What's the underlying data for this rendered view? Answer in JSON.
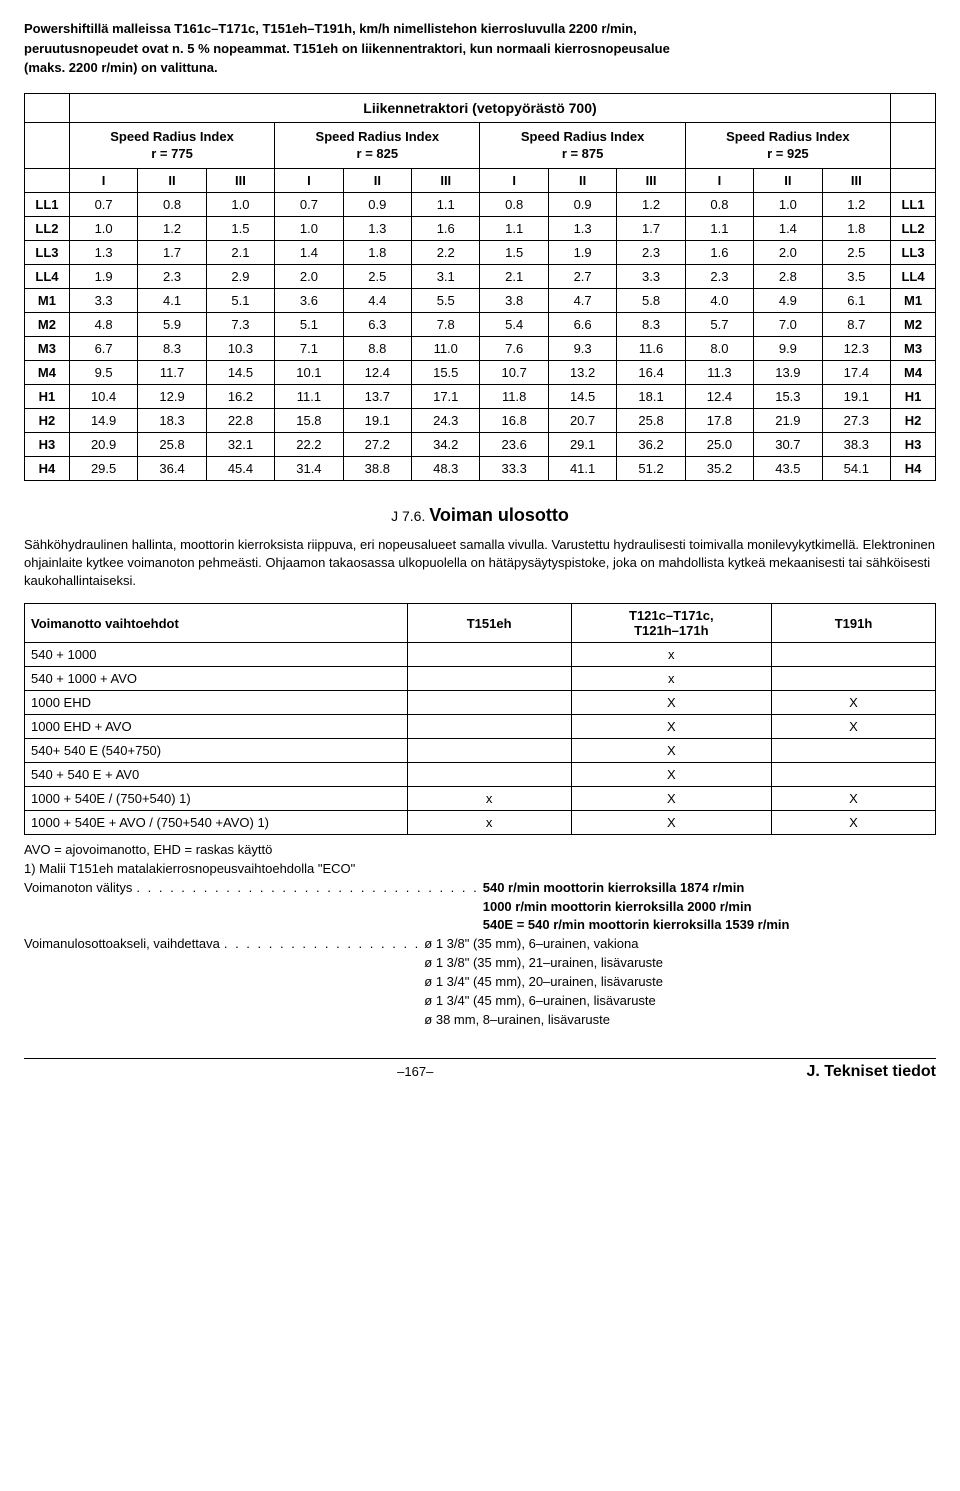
{
  "intro": {
    "line1": "Powershiftillä malleissa T161c–T171c, T151eh–T191h, km/h nimellistehon kierrosluvulla 2200 r/min,",
    "line2": "peruutusnopeudet ovat n. 5 % nopeammat. T151eh on liikennentraktori, kun normaali kierrosnopeusalue",
    "line3": "(maks. 2200 r/min) on valittuna."
  },
  "speed_table": {
    "title": "Liikennetraktori (vetopyörästö 700)",
    "sri_label": "Speed Radius Index",
    "sri_values": [
      "r = 775",
      "r = 825",
      "r = 875",
      "r = 925"
    ],
    "sub_cols": [
      "I",
      "II",
      "III"
    ],
    "rows": [
      {
        "label": "LL1",
        "cells": [
          "0.7",
          "0.8",
          "1.0",
          "0.7",
          "0.9",
          "1.1",
          "0.8",
          "0.9",
          "1.2",
          "0.8",
          "1.0",
          "1.2"
        ],
        "end": "LL1"
      },
      {
        "label": "LL2",
        "cells": [
          "1.0",
          "1.2",
          "1.5",
          "1.0",
          "1.3",
          "1.6",
          "1.1",
          "1.3",
          "1.7",
          "1.1",
          "1.4",
          "1.8"
        ],
        "end": "LL2"
      },
      {
        "label": "LL3",
        "cells": [
          "1.3",
          "1.7",
          "2.1",
          "1.4",
          "1.8",
          "2.2",
          "1.5",
          "1.9",
          "2.3",
          "1.6",
          "2.0",
          "2.5"
        ],
        "end": "LL3"
      },
      {
        "label": "LL4",
        "cells": [
          "1.9",
          "2.3",
          "2.9",
          "2.0",
          "2.5",
          "3.1",
          "2.1",
          "2.7",
          "3.3",
          "2.3",
          "2.8",
          "3.5"
        ],
        "end": "LL4"
      },
      {
        "label": "M1",
        "cells": [
          "3.3",
          "4.1",
          "5.1",
          "3.6",
          "4.4",
          "5.5",
          "3.8",
          "4.7",
          "5.8",
          "4.0",
          "4.9",
          "6.1"
        ],
        "end": "M1"
      },
      {
        "label": "M2",
        "cells": [
          "4.8",
          "5.9",
          "7.3",
          "5.1",
          "6.3",
          "7.8",
          "5.4",
          "6.6",
          "8.3",
          "5.7",
          "7.0",
          "8.7"
        ],
        "end": "M2"
      },
      {
        "label": "M3",
        "cells": [
          "6.7",
          "8.3",
          "10.3",
          "7.1",
          "8.8",
          "11.0",
          "7.6",
          "9.3",
          "11.6",
          "8.0",
          "9.9",
          "12.3"
        ],
        "end": "M3"
      },
      {
        "label": "M4",
        "cells": [
          "9.5",
          "11.7",
          "14.5",
          "10.1",
          "12.4",
          "15.5",
          "10.7",
          "13.2",
          "16.4",
          "11.3",
          "13.9",
          "17.4"
        ],
        "end": "M4"
      },
      {
        "label": "H1",
        "cells": [
          "10.4",
          "12.9",
          "16.2",
          "11.1",
          "13.7",
          "17.1",
          "11.8",
          "14.5",
          "18.1",
          "12.4",
          "15.3",
          "19.1"
        ],
        "end": "H1"
      },
      {
        "label": "H2",
        "cells": [
          "14.9",
          "18.3",
          "22.8",
          "15.8",
          "19.1",
          "24.3",
          "16.8",
          "20.7",
          "25.8",
          "17.8",
          "21.9",
          "27.3"
        ],
        "end": "H2"
      },
      {
        "label": "H3",
        "cells": [
          "20.9",
          "25.8",
          "32.1",
          "22.2",
          "27.2",
          "34.2",
          "23.6",
          "29.1",
          "36.2",
          "25.0",
          "30.7",
          "38.3"
        ],
        "end": "H3"
      },
      {
        "label": "H4",
        "cells": [
          "29.5",
          "36.4",
          "45.4",
          "31.4",
          "38.8",
          "48.3",
          "33.3",
          "41.1",
          "51.2",
          "35.2",
          "43.5",
          "54.1"
        ],
        "end": "H4"
      }
    ]
  },
  "pto": {
    "heading_small": "J 7.6.",
    "heading_big": "Voiman ulosotto",
    "paragraph": "Sähköhydraulinen hallinta, moottorin kierroksista riippuva, eri nopeusalueet samalla vivulla. Varustettu hydraulisesti toimivalla monilevykytkimellä. Elektroninen ohjainlaite kytkee voimanoton pehmeästi. Ohjaamon takaosassa ulkopuolella on hätäpysäytyspistoke, joka on mahdollista kytkeä mekaanisesti tai sähköisesti kaukohallintaiseksi.",
    "header": {
      "col1": "Voimanotto vaihtoehdot",
      "col2": "T151eh",
      "col3a": "T121c–T171c,",
      "col3b": "T121h–171h",
      "col4": "T191h"
    },
    "rows": [
      {
        "label": "540 + 1000",
        "c2": "",
        "c3": "x",
        "c4": ""
      },
      {
        "label": "540 + 1000 + AVO",
        "c2": "",
        "c3": "x",
        "c4": ""
      },
      {
        "label": "1000 EHD",
        "c2": "",
        "c3": "X",
        "c4": "X"
      },
      {
        "label": "1000 EHD + AVO",
        "c2": "",
        "c3": "X",
        "c4": "X"
      },
      {
        "label": "540+ 540 E (540+750)",
        "c2": "",
        "c3": "X",
        "c4": ""
      },
      {
        "label": "540 + 540 E + AV0",
        "c2": "",
        "c3": "X",
        "c4": ""
      },
      {
        "label": "1000 + 540E / (750+540) 1)",
        "c2": "x",
        "c3": "X",
        "c4": "X"
      },
      {
        "label": "1000 + 540E + AVO / (750+540 +AVO) 1)",
        "c2": "x",
        "c3": "X",
        "c4": "X"
      }
    ],
    "notes": {
      "avo": "AVO = ajovoimanotto, EHD = raskas käyttö",
      "footnote": "1) Malii T151eh matalakierrosnopeusvaihtoehdolla \"ECO\"",
      "r1_label": "Voimanoton välitys",
      "r1_dots": " . . . . . . . . . . . . . . . . . . . . . . . . . . . . . . . ",
      "r1_v1": "540 r/min moottorin kierroksilla 1874 r/min",
      "r1_v2": "1000 r/min moottorin kierroksilla 2000 r/min",
      "r1_v3": "540E = 540 r/min moottorin kierroksilla 1539 r/min",
      "r2_label": "Voimanulosottoakseli, vaihdettava",
      "r2_dots": " . . . . . . . . . . . . . . . . . . ",
      "r2_v1": "ø 1 3/8\" (35 mm), 6–urainen, vakiona",
      "r2_v2": "ø 1 3/8\" (35 mm), 21–urainen, lisävaruste",
      "r2_v3": "ø 1 3/4\" (45 mm), 20–urainen, lisävaruste",
      "r2_v4": "ø 1 3/4\" (45 mm), 6–urainen, lisävaruste",
      "r2_v5": "ø 38 mm, 8–urainen, lisävaruste"
    }
  },
  "footer": {
    "page": "–167–",
    "section": "J. Tekniset tiedot"
  }
}
